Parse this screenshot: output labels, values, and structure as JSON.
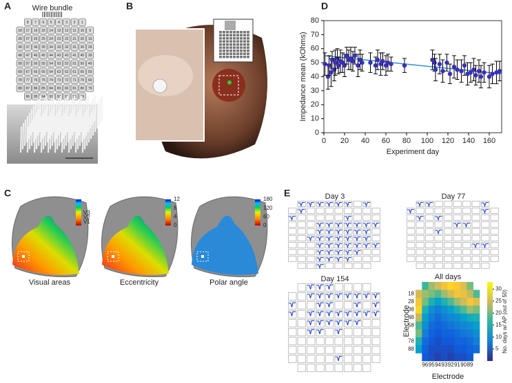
{
  "panel_labels": [
    "A",
    "B",
    "C",
    "D",
    "E"
  ],
  "panel_a": {
    "title": "Wire bundle",
    "electrodes": [
      [
        8,
        7,
        6,
        5,
        4,
        3,
        2,
        1
      ],
      [
        18,
        17,
        16,
        15,
        14,
        13,
        12,
        11,
        10,
        9
      ],
      [
        28,
        27,
        26,
        25,
        24,
        23,
        22,
        21,
        20,
        19
      ],
      [
        38,
        37,
        36,
        35,
        34,
        33,
        32,
        31,
        30,
        29
      ],
      [
        48,
        47,
        46,
        45,
        44,
        43,
        42,
        41,
        40,
        39
      ],
      [
        58,
        57,
        56,
        55,
        54,
        53,
        52,
        51,
        50,
        49
      ],
      [
        68,
        67,
        66,
        65,
        64,
        63,
        62,
        61,
        60,
        59
      ],
      [
        78,
        77,
        76,
        75,
        74,
        73,
        72,
        71,
        70,
        69
      ],
      [
        88,
        87,
        86,
        85,
        84,
        83,
        82,
        81,
        80,
        79
      ],
      [
        96,
        95,
        94,
        93,
        92,
        91,
        90,
        89
      ]
    ]
  },
  "panel_c": {
    "maps": [
      {
        "caption": "Visual areas",
        "area_labels": [
          "V3",
          "V2",
          "V1"
        ]
      },
      {
        "caption": "Eccentricity",
        "clim": [
          0,
          12
        ],
        "cticks": [
          12,
          8,
          4,
          0
        ]
      },
      {
        "caption": "Polar angle",
        "clim": [
          0,
          180
        ],
        "cticks": [
          180,
          120,
          60,
          0
        ]
      }
    ]
  },
  "panel_e": {
    "days": [
      {
        "title": "Day 3",
        "waveform_cells": [
          1,
          2,
          3,
          4,
          5,
          6,
          8,
          11,
          20,
          26,
          33,
          34,
          35,
          36,
          37,
          38,
          39,
          43,
          44,
          45,
          46,
          47,
          48,
          52,
          53,
          54,
          55,
          56,
          57,
          58,
          63,
          64,
          65,
          66,
          67,
          68,
          69,
          73,
          74,
          75,
          76,
          77,
          83,
          84,
          85,
          86,
          93
        ]
      },
      {
        "title": "Day 77",
        "waveform_cells": [
          1,
          2,
          8,
          10,
          18,
          21,
          23,
          35,
          36,
          43,
          67,
          68
        ]
      },
      {
        "title": "Day 154",
        "waveform_cells": [
          2,
          3,
          4,
          12,
          13,
          14,
          15,
          16,
          17,
          18,
          19,
          20,
          23,
          24,
          27,
          29,
          30,
          32,
          33,
          34,
          35,
          36,
          37,
          38,
          39,
          42,
          43,
          44,
          45,
          46,
          47,
          52,
          53,
          55,
          85
        ]
      }
    ]
  },
  "chart_data": [
    {
      "type": "scatter",
      "ylabel": "Impedance mean (kOhms)",
      "xlabel": "Experiment day",
      "color": "#3b2fb8",
      "error_color": "#000000",
      "x": [
        1,
        4,
        5,
        7,
        8,
        10,
        11,
        13,
        14,
        16,
        18,
        20,
        22,
        24,
        26,
        28,
        30,
        33,
        35,
        37,
        45,
        50,
        52,
        55,
        57,
        60,
        62,
        65,
        78,
        105,
        107,
        108,
        112,
        115,
        119,
        122,
        126,
        129,
        133,
        136,
        139,
        142,
        145,
        147,
        150,
        152,
        155,
        160,
        163,
        167,
        170
      ],
      "values": [
        49,
        40,
        48,
        43,
        52,
        45,
        50,
        53,
        48,
        51,
        50,
        48,
        55,
        52,
        53,
        51,
        55,
        48,
        52,
        50,
        50,
        48,
        52,
        49,
        51,
        48,
        50,
        49,
        48,
        52,
        50,
        45,
        49,
        44,
        50,
        42,
        47,
        45,
        44,
        48,
        42,
        43,
        45,
        41,
        44,
        40,
        43,
        40,
        42,
        43,
        44
      ],
      "errors": [
        8,
        9,
        7,
        10,
        6,
        8,
        9,
        7,
        6,
        8,
        7,
        8,
        6,
        7,
        8,
        7,
        6,
        8,
        7,
        6,
        7,
        6,
        7,
        8,
        6,
        7,
        6,
        5,
        5,
        7,
        6,
        8,
        7,
        8,
        6,
        7,
        8,
        7,
        8,
        7,
        8,
        7,
        8,
        7,
        8,
        8,
        7,
        8,
        7,
        8,
        7
      ],
      "fit": {
        "x": [
          0,
          172
        ],
        "values": [
          55,
          42
        ],
        "color": "#2b8fd6"
      },
      "xlim": [
        0,
        172
      ],
      "ylim": [
        0,
        80
      ],
      "xticks": [
        0,
        20,
        40,
        60,
        80,
        100,
        120,
        140,
        160
      ],
      "yticks": [
        0,
        10,
        20,
        30,
        40,
        50,
        60,
        70,
        80
      ]
    },
    {
      "type": "heatmap",
      "title": "All days",
      "xlabel": "Electrode",
      "ylabel": "Electrode",
      "colorbar_label": "No. days w/ AP (out of 50)",
      "matrix": [
        [
          null,
          17,
          22,
          25,
          28,
          30,
          29,
          26,
          20,
          null
        ],
        [
          25,
          22,
          20,
          18,
          22,
          25,
          28,
          27,
          24,
          18
        ],
        [
          28,
          20,
          15,
          12,
          15,
          18,
          22,
          25,
          28,
          26
        ],
        [
          30,
          15,
          10,
          8,
          10,
          12,
          15,
          18,
          22,
          20
        ],
        [
          24,
          12,
          8,
          6,
          8,
          9,
          10,
          12,
          14,
          15
        ],
        [
          18,
          10,
          6,
          5,
          6,
          7,
          8,
          9,
          10,
          12
        ],
        [
          20,
          8,
          5,
          4,
          5,
          5,
          6,
          7,
          8,
          10
        ],
        [
          15,
          6,
          4,
          3,
          4,
          4,
          5,
          5,
          6,
          8
        ],
        [
          12,
          5,
          3,
          3,
          3,
          3,
          4,
          4,
          5,
          6
        ],
        [
          null,
          4,
          3,
          2,
          3,
          2,
          3,
          3,
          4,
          null
        ]
      ],
      "yticks": [
        18,
        28,
        38,
        48,
        58,
        78,
        88
      ],
      "xticks": [
        96,
        95,
        94,
        93,
        92,
        91,
        90,
        89
      ],
      "clim": [
        0,
        33
      ],
      "cticks": [
        5,
        10,
        15,
        20,
        25,
        30
      ]
    }
  ]
}
